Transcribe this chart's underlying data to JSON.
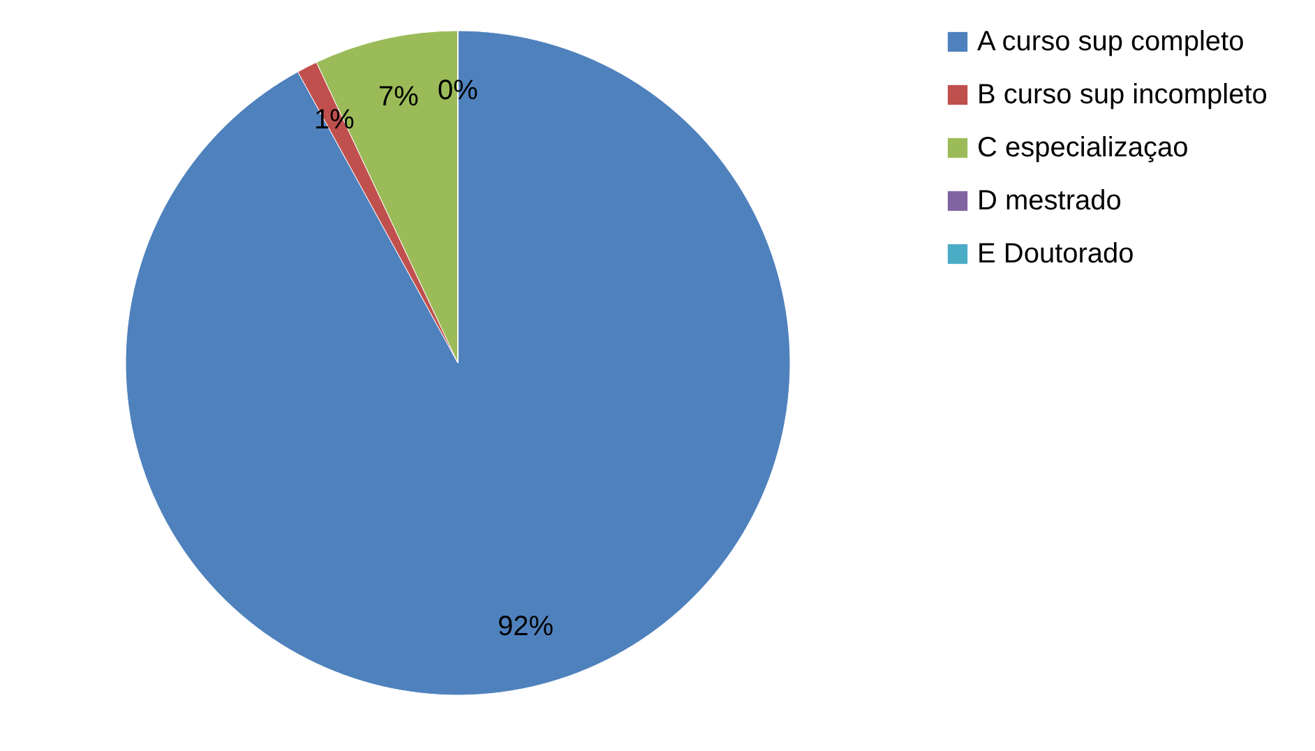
{
  "chart_data": {
    "type": "pie",
    "categories": [
      "A  curso sup completo",
      "B curso sup incompleto",
      "C especializaçao",
      "D mestrado",
      "E Doutorado"
    ],
    "values": [
      92,
      1,
      7,
      0,
      0
    ],
    "colors": [
      "#4f81bd",
      "#c0504d",
      "#9bbb59",
      "#8064a2",
      "#4bacc6"
    ],
    "value_labels": [
      "92%",
      "1%",
      "7%",
      "0%",
      null
    ],
    "legend": "right"
  }
}
